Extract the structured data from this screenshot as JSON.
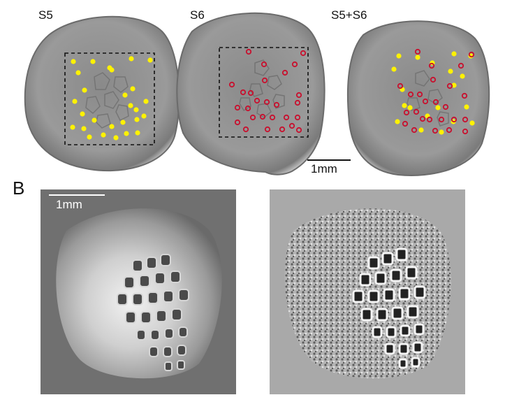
{
  "panel_a": {
    "labels": [
      "S5",
      "S6",
      "S5+S6"
    ],
    "scale_bar_label": "1mm",
    "marker_colors": {
      "s5": "#FFF200",
      "s6": "#C8102E"
    }
  },
  "panel_b": {
    "letter": "B",
    "scale_bar_label": "1mm"
  }
}
